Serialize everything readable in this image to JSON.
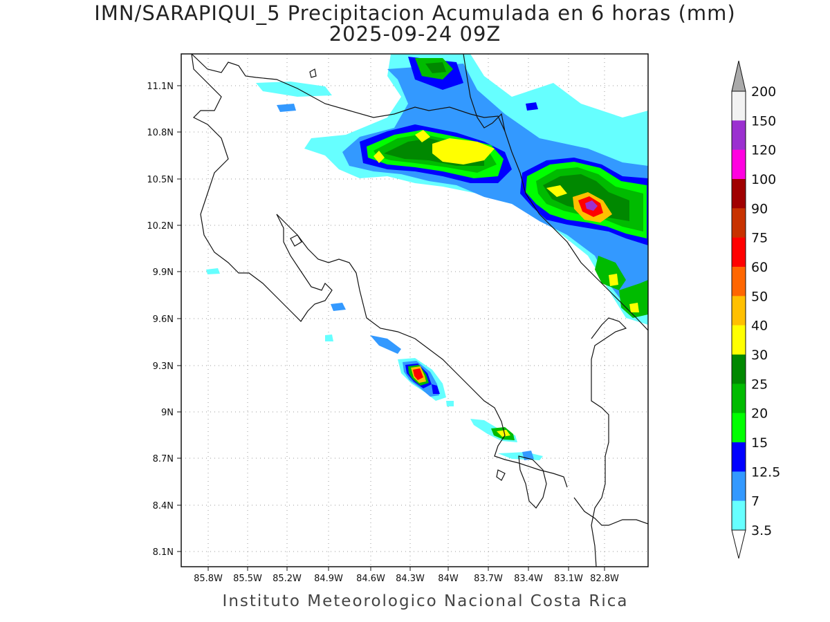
{
  "title_line1": "IMN/SARAPIQUI_5 Precipitacion Acumulada en 6 horas (mm)",
  "title_line2": "2025-09-24 09Z",
  "footer": "Instituto Meteorologico Nacional Costa Rica",
  "lon_labels": [
    "85.8W",
    "85.5W",
    "85.2W",
    "84.9W",
    "84.6W",
    "84.3W",
    "84W",
    "83.7W",
    "83.4W",
    "83.1W",
    "82.8W"
  ],
  "lat_labels": [
    "11.1N",
    "10.8N",
    "10.5N",
    "10.2N",
    "9.9N",
    "9.6N",
    "9.3N",
    "9N",
    "8.7N",
    "8.4N",
    "8.1N"
  ],
  "colorbar": {
    "labels": [
      "200",
      "150",
      "120",
      "100",
      "90",
      "75",
      "60",
      "50",
      "40",
      "30",
      "25",
      "20",
      "15",
      "12.5",
      "7",
      "3.5"
    ],
    "colors_top_to_bottom": [
      "#f2f2f2",
      "#9b30d0",
      "#ff00e0",
      "#a00000",
      "#c83200",
      "#ff0000",
      "#ff6600",
      "#ffc000",
      "#ffff00",
      "#008800",
      "#00bb00",
      "#00ff00",
      "#0000ff",
      "#3399ff",
      "#66ffff"
    ],
    "over_color": "#aaaaaa",
    "under_color": "#ffffff"
  },
  "map": {
    "lon_range": [
      -85.97,
      -82.7
    ],
    "lat_range": [
      8.02,
      11.28
    ],
    "grid": "dotted"
  }
}
